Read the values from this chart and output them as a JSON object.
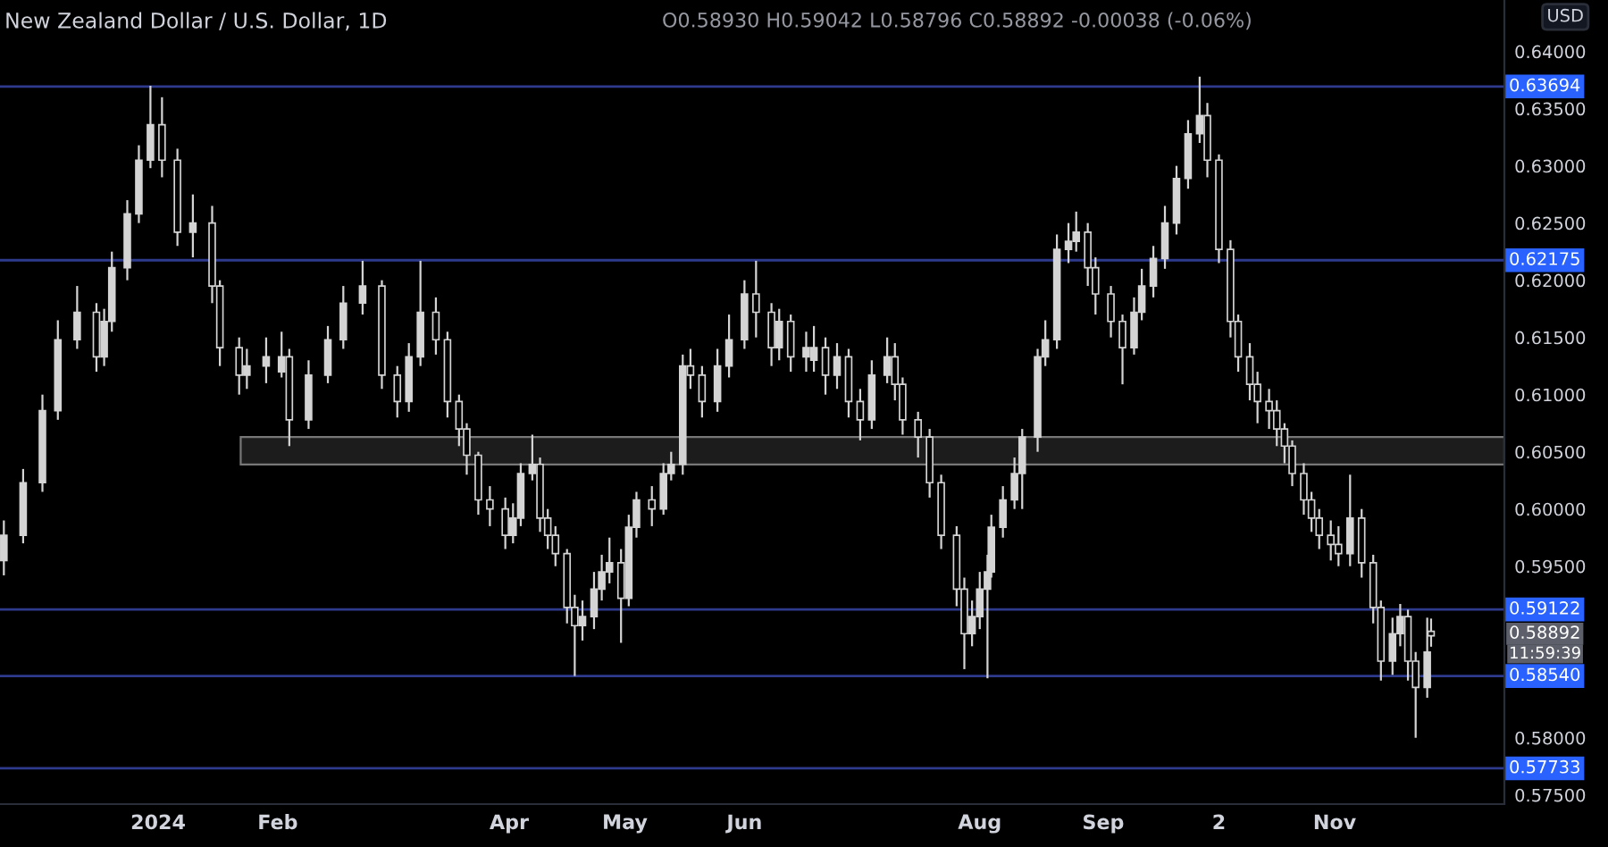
{
  "chart_data": {
    "type": "candlestick",
    "title": "New Zealand Dollar / U.S. Dollar, 1D",
    "subtitle": "O0.58930 H0.59042 L0.58796 C0.58892 -0.00038 (-0.06%)",
    "annotations": [
      "USD",
      "0.58892",
      "11:59:39"
    ],
    "color": "#d4d4d4",
    "x": [
      "2023-11-22",
      "2023-11-27",
      "2023-12-02",
      "2023-12-06",
      "2023-12-11",
      "2023-12-16",
      "2023-12-18",
      "2023-12-20",
      "2023-12-24",
      "2023-12-27",
      "2023-12-30",
      "2024-01-02",
      "2024-01-06",
      "2024-01-10",
      "2024-01-15",
      "2024-01-17",
      "2024-01-22",
      "2024-01-24",
      "2024-01-29",
      "2024-02-02",
      "2024-02-04",
      "2024-02-09",
      "2024-02-14",
      "2024-02-18",
      "2024-02-23",
      "2024-02-28",
      "2024-03-03",
      "2024-03-06",
      "2024-03-09",
      "2024-03-13",
      "2024-03-16",
      "2024-03-19",
      "2024-03-21",
      "2024-03-24",
      "2024-03-27",
      "2024-03-31",
      "2024-04-02",
      "2024-04-04",
      "2024-04-07",
      "2024-04-09",
      "2024-04-11",
      "2024-04-13",
      "2024-04-16",
      "2024-04-18",
      "2024-04-20",
      "2024-04-23",
      "2024-04-25",
      "2024-04-27",
      "2024-04-30",
      "2024-05-02",
      "2024-05-04",
      "2024-05-08",
      "2024-05-11",
      "2024-05-13",
      "2024-05-16",
      "2024-05-18",
      "2024-05-21",
      "2024-05-25",
      "2024-05-28",
      "2024-06-01",
      "2024-06-04",
      "2024-06-08",
      "2024-06-10",
      "2024-06-13",
      "2024-06-17",
      "2024-06-19",
      "2024-06-22",
      "2024-06-25",
      "2024-06-28",
      "2024-07-01",
      "2024-07-04",
      "2024-07-08",
      "2024-07-10",
      "2024-07-12",
      "2024-07-16",
      "2024-07-19",
      "2024-07-22",
      "2024-07-26",
      "2024-07-28",
      "2024-07-30",
      "2024-08-01",
      "2024-08-03",
      "2024-08-04",
      "2024-08-07",
      "2024-08-10",
      "2024-08-12",
      "2024-08-16",
      "2024-08-18",
      "2024-08-21",
      "2024-08-24",
      "2024-08-26",
      "2024-08-29",
      "2024-08-31",
      "2024-09-04",
      "2024-09-07",
      "2024-09-10",
      "2024-09-12",
      "2024-09-15",
      "2024-09-18",
      "2024-09-21",
      "2024-09-24",
      "2024-09-27",
      "2024-09-29",
      "2024-10-02",
      "2024-10-05",
      "2024-10-07",
      "2024-10-10",
      "2024-10-12",
      "2024-10-15",
      "2024-10-17",
      "2024-10-19",
      "2024-10-21",
      "2024-10-24",
      "2024-10-26",
      "2024-10-28",
      "2024-10-31",
      "2024-11-02",
      "2024-11-05",
      "2024-11-08",
      "2024-11-11",
      "2024-11-13",
      "2024-11-16",
      "2024-11-18",
      "2024-11-20",
      "2024-11-22",
      "2024-11-25",
      "2024-11-26"
    ],
    "ohlc": [
      [
        0.5955,
        0.599,
        0.5942,
        0.5977
      ],
      [
        0.5977,
        0.6035,
        0.597,
        0.6023
      ],
      [
        0.6023,
        0.61,
        0.6015,
        0.6086
      ],
      [
        0.6086,
        0.6165,
        0.6078,
        0.6148
      ],
      [
        0.6148,
        0.6195,
        0.614,
        0.6172
      ],
      [
        0.6172,
        0.618,
        0.612,
        0.6133
      ],
      [
        0.6133,
        0.6175,
        0.6125,
        0.6164
      ],
      [
        0.6164,
        0.6225,
        0.6155,
        0.6211
      ],
      [
        0.6211,
        0.627,
        0.62,
        0.6258
      ],
      [
        0.6258,
        0.6318,
        0.625,
        0.6305
      ],
      [
        0.6305,
        0.637,
        0.6298,
        0.6336
      ],
      [
        0.6336,
        0.636,
        0.629,
        0.6305
      ],
      [
        0.6305,
        0.6315,
        0.623,
        0.6242
      ],
      [
        0.6242,
        0.6275,
        0.622,
        0.625
      ],
      [
        0.625,
        0.6265,
        0.618,
        0.6195
      ],
      [
        0.6195,
        0.62,
        0.6125,
        0.6141
      ],
      [
        0.6141,
        0.615,
        0.61,
        0.6117
      ],
      [
        0.6117,
        0.614,
        0.6105,
        0.6125
      ],
      [
        0.6125,
        0.615,
        0.611,
        0.6133
      ],
      [
        0.612,
        0.6155,
        0.6115,
        0.6133
      ],
      [
        0.6133,
        0.614,
        0.6055,
        0.6078
      ],
      [
        0.6078,
        0.613,
        0.607,
        0.6117
      ],
      [
        0.6117,
        0.616,
        0.611,
        0.6148
      ],
      [
        0.6148,
        0.6195,
        0.614,
        0.618
      ],
      [
        0.618,
        0.6217,
        0.617,
        0.6195
      ],
      [
        0.6195,
        0.62,
        0.6105,
        0.6117
      ],
      [
        0.6117,
        0.6125,
        0.608,
        0.6094
      ],
      [
        0.6094,
        0.6145,
        0.6085,
        0.6133
      ],
      [
        0.6133,
        0.6217,
        0.6125,
        0.6172
      ],
      [
        0.6172,
        0.6185,
        0.6135,
        0.6148
      ],
      [
        0.6148,
        0.6155,
        0.608,
        0.6094
      ],
      [
        0.6094,
        0.61,
        0.6055,
        0.607
      ],
      [
        0.607,
        0.6075,
        0.603,
        0.6047
      ],
      [
        0.6047,
        0.605,
        0.5995,
        0.6008
      ],
      [
        0.6008,
        0.602,
        0.5985,
        0.6
      ],
      [
        0.6,
        0.601,
        0.5965,
        0.5977
      ],
      [
        0.5977,
        0.6005,
        0.597,
        0.5992
      ],
      [
        0.5992,
        0.604,
        0.5985,
        0.6031
      ],
      [
        0.6031,
        0.6065,
        0.6025,
        0.6039
      ],
      [
        0.6039,
        0.6045,
        0.598,
        0.5992
      ],
      [
        0.5992,
        0.6,
        0.5965,
        0.5977
      ],
      [
        0.5977,
        0.5985,
        0.595,
        0.5961
      ],
      [
        0.5961,
        0.5965,
        0.59,
        0.5914
      ],
      [
        0.5914,
        0.5925,
        0.5854,
        0.5898
      ],
      [
        0.5898,
        0.592,
        0.5885,
        0.5906
      ],
      [
        0.5906,
        0.5945,
        0.5895,
        0.593
      ],
      [
        0.593,
        0.596,
        0.592,
        0.5945
      ],
      [
        0.5945,
        0.5975,
        0.5935,
        0.5953
      ],
      [
        0.5953,
        0.5965,
        0.5883,
        0.5922
      ],
      [
        0.5922,
        0.5995,
        0.5915,
        0.5984
      ],
      [
        0.5984,
        0.6015,
        0.5975,
        0.6008
      ],
      [
        0.6008,
        0.602,
        0.5985,
        0.6
      ],
      [
        0.6,
        0.604,
        0.5995,
        0.6031
      ],
      [
        0.6031,
        0.605,
        0.6025,
        0.6039
      ],
      [
        0.6039,
        0.6135,
        0.603,
        0.6125
      ],
      [
        0.6125,
        0.614,
        0.6105,
        0.6117
      ],
      [
        0.6117,
        0.6125,
        0.608,
        0.6094
      ],
      [
        0.6094,
        0.614,
        0.6085,
        0.6125
      ],
      [
        0.6125,
        0.617,
        0.6115,
        0.6148
      ],
      [
        0.6148,
        0.62,
        0.614,
        0.6188
      ],
      [
        0.6188,
        0.6217,
        0.615,
        0.6172
      ],
      [
        0.6172,
        0.618,
        0.6125,
        0.6141
      ],
      [
        0.6141,
        0.6175,
        0.613,
        0.6164
      ],
      [
        0.6164,
        0.617,
        0.612,
        0.6133
      ],
      [
        0.6133,
        0.6155,
        0.612,
        0.6141
      ],
      [
        0.613,
        0.616,
        0.612,
        0.6141
      ],
      [
        0.6141,
        0.615,
        0.61,
        0.6117
      ],
      [
        0.6117,
        0.6145,
        0.6105,
        0.6133
      ],
      [
        0.6133,
        0.614,
        0.608,
        0.6094
      ],
      [
        0.6094,
        0.6105,
        0.606,
        0.6078
      ],
      [
        0.6078,
        0.613,
        0.607,
        0.6117
      ],
      [
        0.6117,
        0.615,
        0.611,
        0.6133
      ],
      [
        0.6133,
        0.6145,
        0.6095,
        0.6109
      ],
      [
        0.6109,
        0.6115,
        0.6065,
        0.6078
      ],
      [
        0.6078,
        0.6085,
        0.6045,
        0.6063
      ],
      [
        0.6063,
        0.607,
        0.601,
        0.6023
      ],
      [
        0.6023,
        0.603,
        0.5965,
        0.5977
      ],
      [
        0.5977,
        0.5985,
        0.5915,
        0.593
      ],
      [
        0.593,
        0.594,
        0.586,
        0.5891
      ],
      [
        0.5891,
        0.592,
        0.588,
        0.5906
      ],
      [
        0.5906,
        0.5945,
        0.5895,
        0.593
      ],
      [
        0.593,
        0.596,
        0.5852,
        0.5945
      ],
      [
        0.5945,
        0.5995,
        0.594,
        0.5984
      ],
      [
        0.5984,
        0.602,
        0.5975,
        0.6008
      ],
      [
        0.6008,
        0.6045,
        0.6,
        0.6031
      ],
      [
        0.6031,
        0.607,
        0.6,
        0.6063
      ],
      [
        0.6063,
        0.614,
        0.605,
        0.6133
      ],
      [
        0.6133,
        0.6165,
        0.6125,
        0.6148
      ],
      [
        0.6148,
        0.624,
        0.614,
        0.6227
      ],
      [
        0.6227,
        0.625,
        0.6215,
        0.6234
      ],
      [
        0.6234,
        0.626,
        0.6225,
        0.6242
      ],
      [
        0.6242,
        0.625,
        0.6195,
        0.6211
      ],
      [
        0.6211,
        0.622,
        0.617,
        0.6188
      ],
      [
        0.6188,
        0.6195,
        0.615,
        0.6164
      ],
      [
        0.6164,
        0.617,
        0.6109,
        0.6141
      ],
      [
        0.6141,
        0.6185,
        0.6135,
        0.6172
      ],
      [
        0.6172,
        0.621,
        0.6165,
        0.6195
      ],
      [
        0.6195,
        0.623,
        0.6185,
        0.6219
      ],
      [
        0.6219,
        0.6265,
        0.621,
        0.625
      ],
      [
        0.625,
        0.63,
        0.624,
        0.6289
      ],
      [
        0.6289,
        0.634,
        0.628,
        0.6328
      ],
      [
        0.6328,
        0.6378,
        0.632,
        0.6344
      ],
      [
        0.6344,
        0.6355,
        0.629,
        0.6305
      ],
      [
        0.6305,
        0.631,
        0.6215,
        0.6227
      ],
      [
        0.6227,
        0.6235,
        0.615,
        0.6164
      ],
      [
        0.6164,
        0.617,
        0.612,
        0.6133
      ],
      [
        0.6133,
        0.6145,
        0.6095,
        0.6109
      ],
      [
        0.6109,
        0.612,
        0.6075,
        0.6094
      ],
      [
        0.6094,
        0.6105,
        0.607,
        0.6086
      ],
      [
        0.6086,
        0.6095,
        0.6055,
        0.607
      ],
      [
        0.607,
        0.6075,
        0.604,
        0.6055
      ],
      [
        0.6055,
        0.606,
        0.602,
        0.6031
      ],
      [
        0.6031,
        0.604,
        0.5995,
        0.6008
      ],
      [
        0.6008,
        0.6015,
        0.598,
        0.5992
      ],
      [
        0.5992,
        0.6,
        0.5965,
        0.5977
      ],
      [
        0.5977,
        0.599,
        0.5955,
        0.5969
      ],
      [
        0.5969,
        0.5985,
        0.595,
        0.5961
      ],
      [
        0.5961,
        0.603,
        0.595,
        0.5992
      ],
      [
        0.5992,
        0.6,
        0.594,
        0.5953
      ],
      [
        0.5953,
        0.596,
        0.59,
        0.5914
      ],
      [
        0.5914,
        0.592,
        0.585,
        0.5867
      ],
      [
        0.5867,
        0.5905,
        0.5855,
        0.5891
      ],
      [
        0.5891,
        0.5917,
        0.588,
        0.5906
      ],
      [
        0.5906,
        0.5912,
        0.585,
        0.5867
      ],
      [
        0.5867,
        0.5875,
        0.58,
        0.5844
      ],
      [
        0.5844,
        0.5905,
        0.5835,
        0.5875
      ],
      [
        0.5893,
        0.59042,
        0.58796,
        0.58892
      ]
    ],
    "xlim": [
      "2023-11-21",
      "2024-12-15"
    ],
    "xticks": [
      {
        "value": "2024-01-01",
        "label": "2024"
      },
      {
        "value": "2024-02-01",
        "label": "Feb"
      },
      {
        "value": "2024-04-01",
        "label": "Apr"
      },
      {
        "value": "2024-05-01",
        "label": "May"
      },
      {
        "value": "2024-06-01",
        "label": "Jun"
      },
      {
        "value": "2024-08-01",
        "label": "Aug"
      },
      {
        "value": "2024-09-02",
        "label": "Sep"
      },
      {
        "value": "2024-10-02",
        "label": "2"
      },
      {
        "value": "2024-11-01",
        "label": "Nov"
      }
    ],
    "ylim": [
      0.5742,
      0.6445
    ],
    "yticks": [
      {
        "value": 0.575,
        "label": "0.57500"
      },
      {
        "value": 0.58,
        "label": "0.58000"
      },
      {
        "value": 0.595,
        "label": "0.59500"
      },
      {
        "value": 0.6,
        "label": "0.60000"
      },
      {
        "value": 0.605,
        "label": "0.60500"
      },
      {
        "value": 0.61,
        "label": "0.61000"
      },
      {
        "value": 0.615,
        "label": "0.61500"
      },
      {
        "value": 0.62,
        "label": "0.62000"
      },
      {
        "value": 0.625,
        "label": "0.62500"
      },
      {
        "value": 0.63,
        "label": "0.63000"
      },
      {
        "value": 0.635,
        "label": "0.63500"
      },
      {
        "value": 0.64,
        "label": "0.64000"
      }
    ],
    "ref_lines": [
      {
        "axis": "y",
        "value": 0.63694,
        "label": "0.63694",
        "color": "#2e3a8c"
      },
      {
        "axis": "y",
        "value": 0.62175,
        "label": "0.62175",
        "color": "#2e3a8c"
      },
      {
        "axis": "y",
        "value": 0.59122,
        "label": "0.59122",
        "color": "#2e3a8c"
      },
      {
        "axis": "y",
        "value": 0.5854,
        "label": "0.58540",
        "color": "#2e3a8c"
      },
      {
        "axis": "y",
        "value": 0.57733,
        "label": "0.57733",
        "color": "#2e3a8c"
      }
    ],
    "bands": [
      {
        "axis": "y",
        "from": 0.6039,
        "to": 0.6063,
        "color": "#1c1c1c"
      }
    ],
    "grid": false
  }
}
